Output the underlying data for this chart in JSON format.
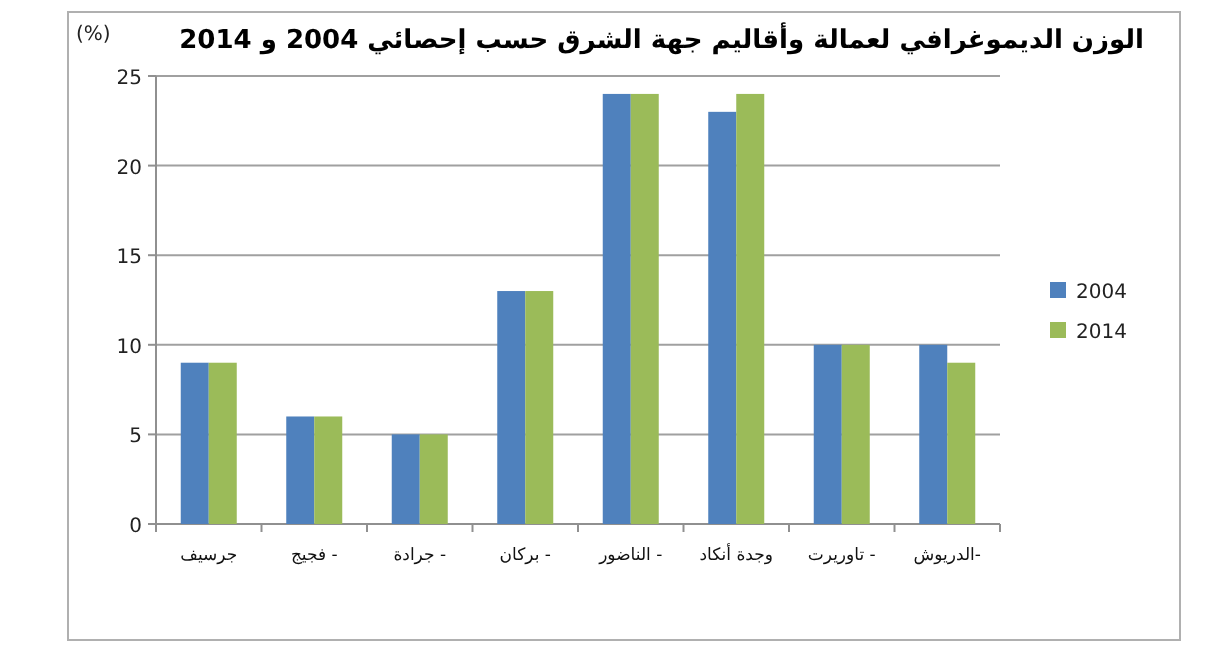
{
  "chart_data": {
    "type": "bar",
    "title": "الوزن الديموغرافي لعمالة وأقاليم جهة الشرق حسب إحصائي 2004 و 2014",
    "ylabel": "(%)",
    "categories": [
      "جرسيف",
      "- فجيج",
      "- جرادة",
      "- بركان",
      "- الناضور",
      "وجدة أنكاد",
      "- تاوريرت",
      "-الدريوش"
    ],
    "series": [
      {
        "name": "2004",
        "color": "#4f81bd",
        "values": [
          9,
          6,
          5,
          13,
          24,
          23,
          10,
          10
        ]
      },
      {
        "name": "2014",
        "color": "#9bbb59",
        "values": [
          9,
          6,
          5,
          13,
          24,
          24,
          10,
          9
        ]
      }
    ],
    "ylim": [
      0,
      25
    ],
    "yticks": [
      0,
      5,
      10,
      15,
      20,
      25
    ],
    "grid": "y",
    "legend": "right"
  }
}
